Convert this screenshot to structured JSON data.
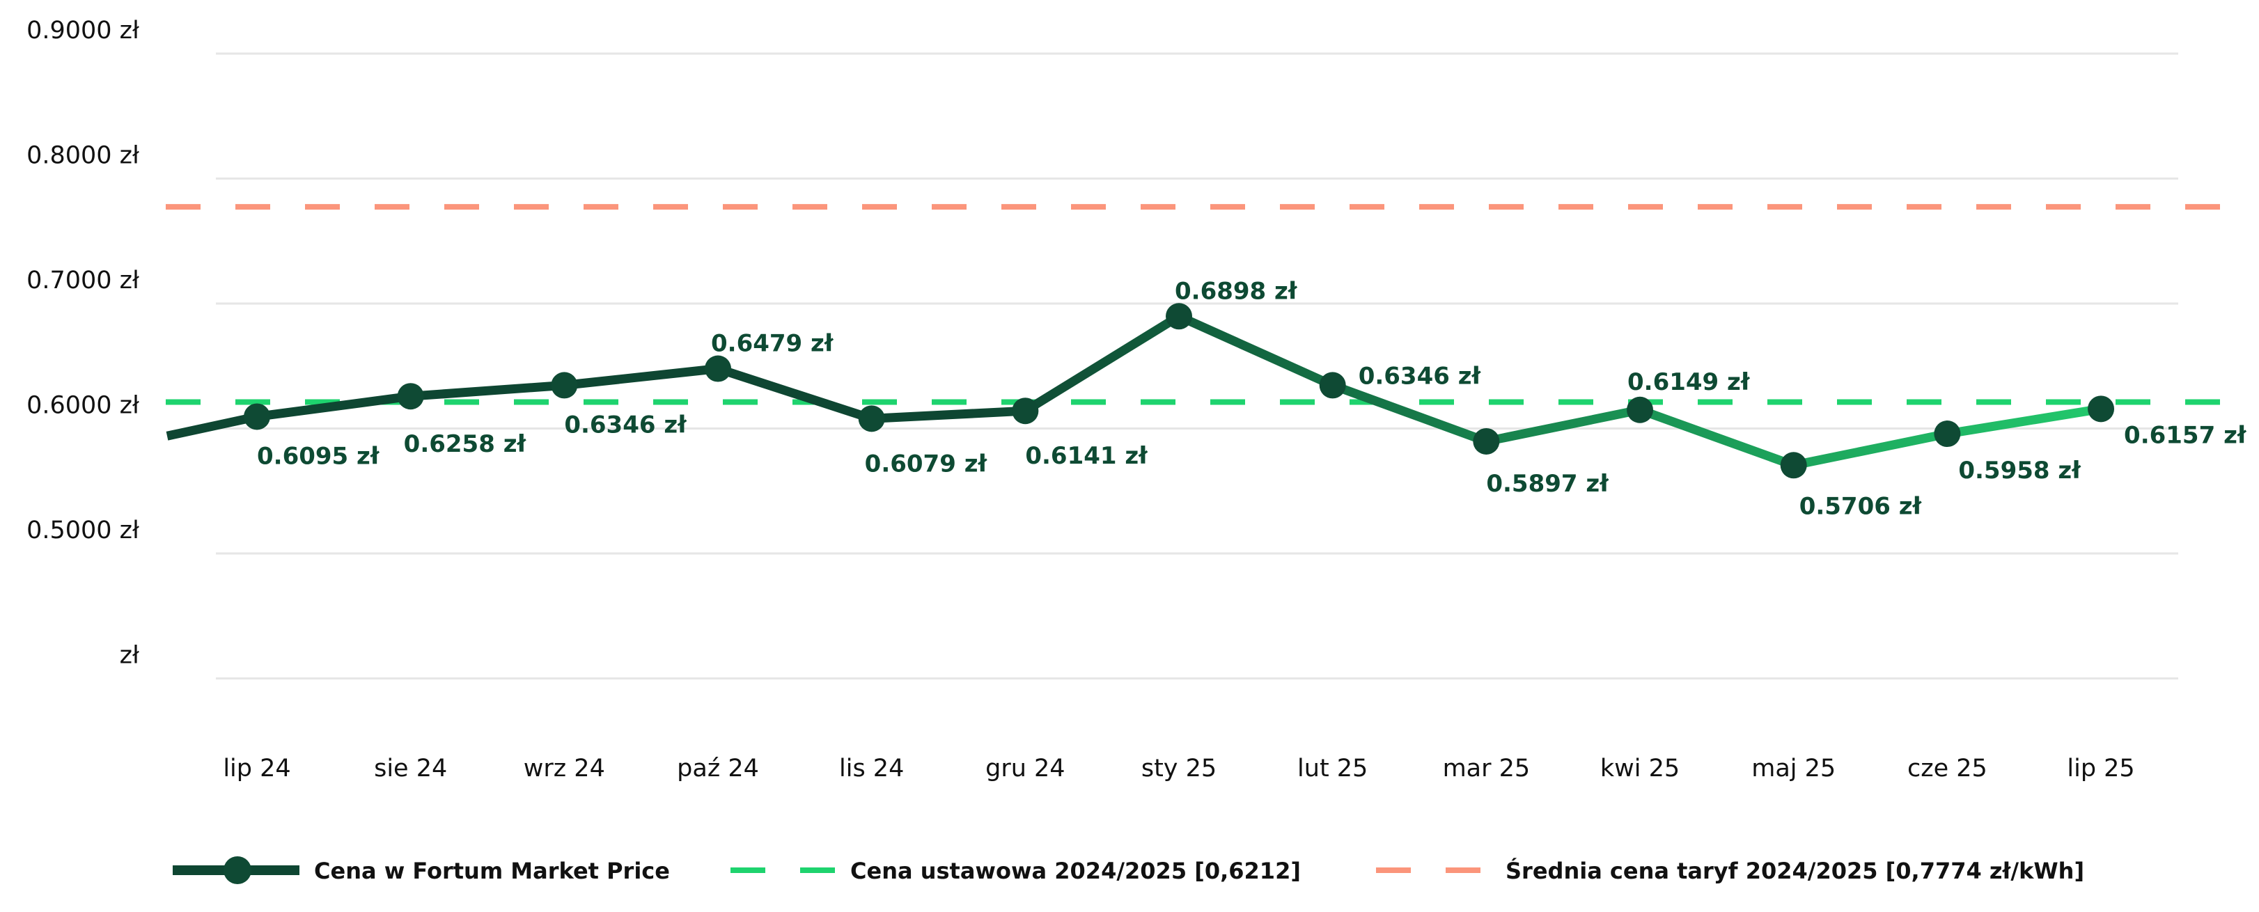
{
  "chart_data": {
    "type": "line",
    "title": "",
    "xlabel": "",
    "ylabel": "",
    "ylim": [
      0.4,
      0.9
    ],
    "y_ticks": [
      {
        "value": 0.9,
        "label": "0.9000 zł"
      },
      {
        "value": 0.8,
        "label": "0.8000 zł"
      },
      {
        "value": 0.7,
        "label": "0.7000 zł"
      },
      {
        "value": 0.6,
        "label": "0.6000 zł"
      },
      {
        "value": 0.5,
        "label": "0.5000 zł"
      },
      {
        "value": 0.4,
        "label": "zł"
      }
    ],
    "grid": true,
    "legend_position": "bottom",
    "categories": [
      "lip 24",
      "sie 24",
      "wrz 24",
      "paź 24",
      "lis 24",
      "gru 24",
      "sty 25",
      "lut 25",
      "mar 25",
      "kwi 25",
      "maj 25",
      "cze 25",
      "lip 25"
    ],
    "series": [
      {
        "name": "Cena w Fortum Market Price",
        "values": [
          0.6095,
          0.6258,
          0.6346,
          0.6479,
          0.6079,
          0.6141,
          0.6898,
          0.6346,
          0.5897,
          0.6149,
          0.5706,
          0.5958,
          0.6157
        ],
        "labels": [
          "0.6095 zł",
          "0.6258 zł",
          "0.6346 zł",
          "0.6479 zł",
          "0.6079 zł",
          "0.6141 zł",
          "0.6898 zł",
          "0.6346 zł",
          "0.5897 zł",
          "0.6149 zł",
          "0.5706 zł",
          "0.5958 zł",
          "0.6157 zł"
        ],
        "leading_value": 0.594,
        "color_start": "#0e4632",
        "color_end": "#22c86c",
        "marker_color": "#0f4a34"
      }
    ],
    "reference_lines": [
      {
        "name": "Cena ustawowa 2024/2025 [0,6212]",
        "value": 0.6212,
        "color": "#1ed36e",
        "style": "dashed"
      },
      {
        "name": "Średnia cena taryf 2024/2025 [0,7774 zł/kWh]",
        "value": 0.7774,
        "color": "#fb957b",
        "style": "dashed"
      }
    ],
    "grid_color": "#e6e6e6"
  }
}
